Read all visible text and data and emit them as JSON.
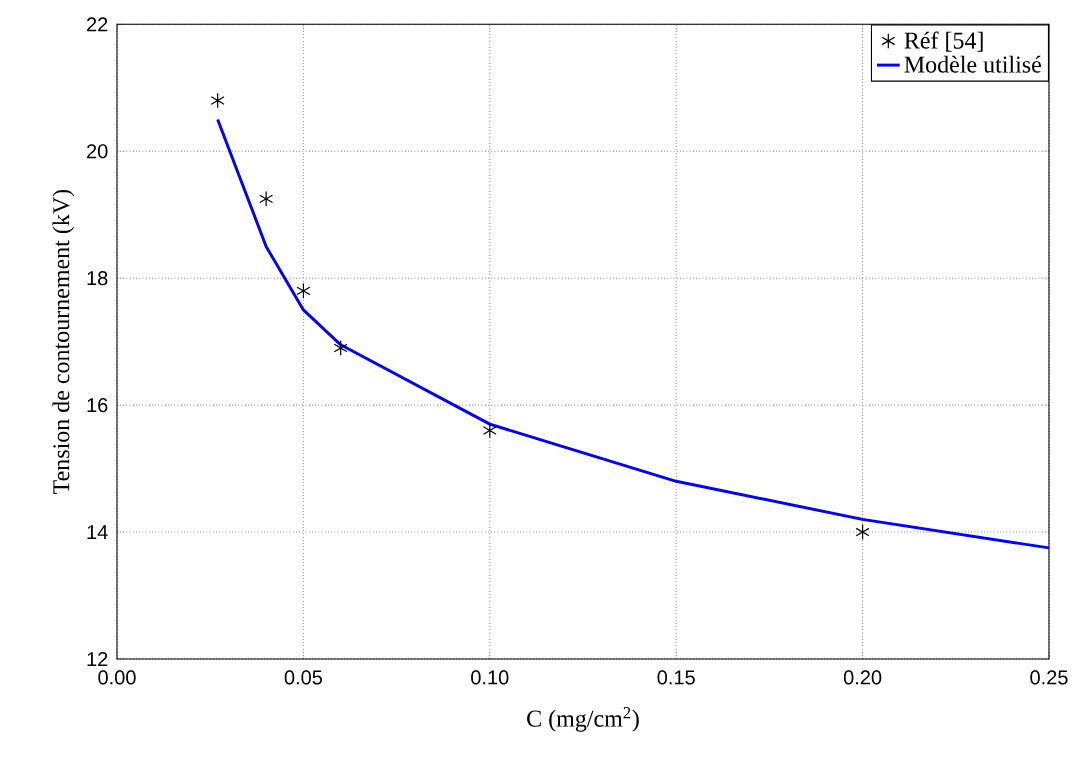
{
  "chart_data": {
    "type": "line",
    "xlabel": "C (mg/cm$^{2}$)",
    "ylabel": "Tension de contournement (kV)",
    "xlim": [
      0,
      0.25
    ],
    "ylim": [
      12,
      22
    ],
    "xticks": [
      {
        "value": 0,
        "label": "0.00"
      },
      {
        "value": 0.05,
        "label": "0.05"
      },
      {
        "value": 0.1,
        "label": "0.10"
      },
      {
        "value": 0.15,
        "label": "0.15"
      },
      {
        "value": 0.2,
        "label": "0.20"
      },
      {
        "value": 0.25,
        "label": "0.25"
      }
    ],
    "yticks": [
      12,
      14,
      16,
      18,
      20,
      22
    ],
    "grid": true,
    "legend": "top right",
    "series": [
      {
        "name": "Réf [54]",
        "type": "scatter",
        "marker": "cross",
        "color": "#000000",
        "x": [
          0.027,
          0.04,
          0.05,
          0.06,
          0.1,
          0.2
        ],
        "values": [
          20.8,
          19.25,
          17.8,
          16.9,
          15.6,
          14.0
        ]
      },
      {
        "name": "Modèle utilisé",
        "color": "#0000ff",
        "x": [
          0.027,
          0.04,
          0.05,
          0.06,
          0.1,
          0.15,
          0.2,
          0.25
        ],
        "values": [
          20.5,
          18.5,
          17.5,
          16.95,
          15.7,
          14.8,
          14.2,
          13.75
        ]
      }
    ]
  }
}
